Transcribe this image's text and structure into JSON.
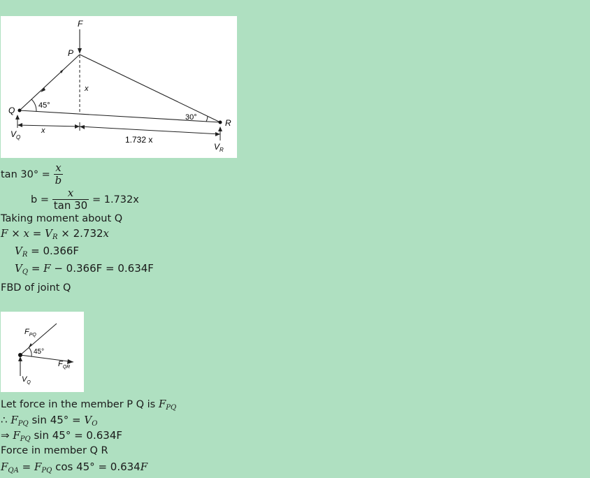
{
  "figure1": {
    "F": "F",
    "P": "P",
    "Q": "Q",
    "R": "R",
    "x_vert": "x",
    "angle_q": "45°",
    "angle_r": "30°",
    "VQ_V": "V",
    "VQ_sub": "Q",
    "VR_V": "V",
    "VR_sub": "R",
    "x_bottom": "x",
    "b_bottom": "1.732 x"
  },
  "eq1": {
    "lhs": "tan 30° =",
    "num": "x",
    "den": "b"
  },
  "eq2": {
    "lhs": "b =",
    "num": "x",
    "den": "tan 30",
    "rhs": "= 1.732x"
  },
  "text1": "Taking moment about Q",
  "eq3": {
    "F": "F",
    "times1": " × ",
    "x1": "x",
    "eq": " = ",
    "V": "V",
    "sub": "R",
    "rest": " × 2.732",
    "x2": "x"
  },
  "eq4": {
    "V": "V",
    "sub": "R",
    "rest": " = 0.366F"
  },
  "eq5": {
    "V": "V",
    "sub": "Q",
    "eq": " = ",
    "F": "F",
    "rest": " − 0.366F = 0.634F"
  },
  "text2": "FBD of joint Q",
  "figure2": {
    "F": "F",
    "F_sub": "PQ",
    "angle": "45°",
    "FQR": "F",
    "FQR_sub": "QR",
    "V": "V",
    "V_sub": "Q"
  },
  "text3": {
    "pre": "Let force in the member P Q is ",
    "F": "F",
    "sub": "PQ"
  },
  "eq6": {
    "therefore": "∴ ",
    "F": "F",
    "sub": "PQ",
    "mid": " sin 45° = ",
    "V": "V",
    "vsub": "O"
  },
  "eq7": {
    "implies": "⇒ ",
    "F": "F",
    "sub": "PQ",
    "rest": " sin 45° = 0.634F"
  },
  "text4": "Force in member Q R",
  "eq8": {
    "F1": "F",
    "sub1": "QA",
    "eq": " = ",
    "F2": "F",
    "sub2": "PQ",
    "mid": " cos 45° = 0.634",
    "F3": "F"
  }
}
